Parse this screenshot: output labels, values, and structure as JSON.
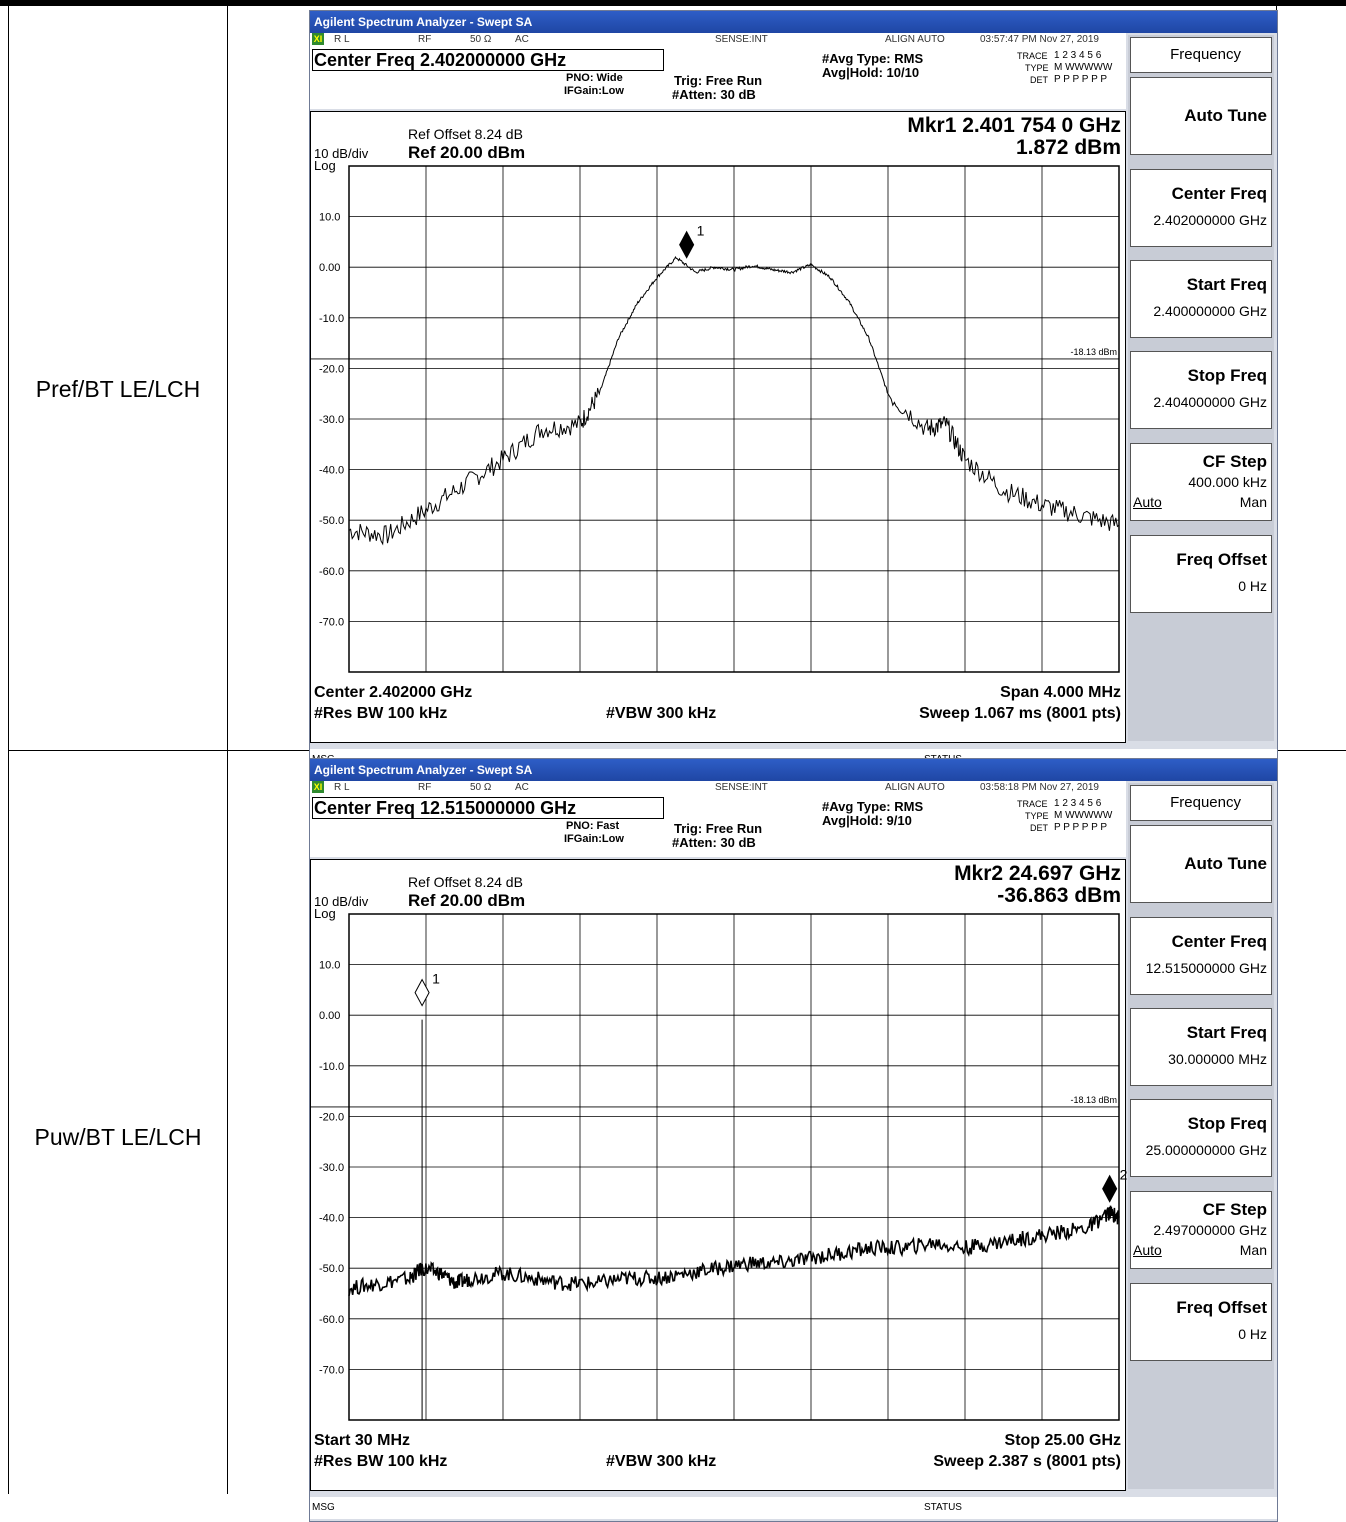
{
  "rows": [
    {
      "label": "Pref/BT LE/LCH",
      "window_title": "Agilent Spectrum Analyzer - Swept SA",
      "status": {
        "rl": "R L",
        "rf": "RF",
        "imp": "50 Ω",
        "coupling": "AC",
        "sense": "SENSE:INT",
        "align": "ALIGN AUTO",
        "timestamp": "03:57:47 PM Nov 27, 2019"
      },
      "center_freq_title": "Center Freq 2.402000000 GHz",
      "pno": "PNO: Wide",
      "ifgain": "IFGain:Low",
      "trig": "Trig: Free Run",
      "atten": "#Atten: 30 dB",
      "avg_type": "#Avg Type: RMS",
      "avg_hold": "Avg|Hold: 10/10",
      "trace": {
        "trace_label": "TRACE",
        "trace_val": "1 2 3 4 5 6",
        "type_label": "TYPE",
        "type_val": "M WWWWW",
        "det_label": "DET",
        "det_val": "P P P P P P"
      },
      "ref_offset": "Ref Offset 8.24 dB",
      "scale": "10 dB/div",
      "ref_level": "Ref 20.00 dBm",
      "log": "Log",
      "marker_readout": "Mkr1 2.401 754 0 GHz",
      "marker_value": "1.872 dBm",
      "threshold_label": "-18.13 dBm",
      "footer": {
        "left1": "Center 2.402000 GHz",
        "right1": "Span 4.000 MHz",
        "left2": "#Res BW 100 kHz",
        "mid2": "#VBW 300 kHz",
        "right2": "Sweep  1.067 ms (8001 pts)"
      },
      "msg": "MSG",
      "status_label": "STATUS",
      "softkeys": {
        "title": "Frequency",
        "auto_tune": "Auto Tune",
        "center_label": "Center Freq",
        "center_val": "2.402000000 GHz",
        "start_label": "Start Freq",
        "start_val": "2.400000000 GHz",
        "stop_label": "Stop Freq",
        "stop_val": "2.404000000 GHz",
        "cfstep_label": "CF Step",
        "cfstep_val": "400.000 kHz",
        "auto": "Auto",
        "man": "Man",
        "offset_label": "Freq Offset",
        "offset_val": "0 Hz"
      },
      "marker_number": "1",
      "chart_data": {
        "type": "line",
        "title": "",
        "xlabel": "Frequency",
        "ylabel": "dBm",
        "xlim": [
          2.4,
          2.404
        ],
        "ylim": [
          -80,
          20
        ],
        "y_ticks": [
          "10.0",
          "0.00",
          "-10.0",
          "-20.0",
          "-30.0",
          "-40.0",
          "-50.0",
          "-60.0",
          "-70.0"
        ],
        "threshold": -18.13,
        "markers": [
          {
            "name": "1",
            "x": 2.401754,
            "y": 1.872,
            "style": "filled"
          }
        ],
        "series": [
          {
            "x": [
              2.4,
              2.4002,
              2.4004,
              2.4006,
              2.4008,
              2.401,
              2.4012,
              2.4013,
              2.4014,
              2.4015,
              2.4016,
              2.4017,
              2.4018,
              2.4019,
              2.402,
              2.4021,
              2.4022,
              2.4023,
              2.4024,
              2.4025,
              2.4026,
              2.4027,
              2.4028,
              2.403,
              2.4031,
              2.4032,
              2.4034,
              2.4036,
              2.4038,
              2.404
            ],
            "y": [
              -52,
              -53,
              -48,
              -43,
              -38,
              -32,
              -31,
              -25,
              -14,
              -7,
              -2,
              1.9,
              -1,
              0,
              -0.5,
              0.3,
              -0.5,
              -1,
              0.5,
              -2,
              -7,
              -14,
              -25,
              -32,
              -31,
              -38,
              -44,
              -47,
              -49,
              -51
            ]
          }
        ]
      }
    },
    {
      "label": "Puw/BT LE/LCH",
      "window_title": "Agilent Spectrum Analyzer - Swept SA",
      "status": {
        "rl": "R L",
        "rf": "RF",
        "imp": "50 Ω",
        "coupling": "AC",
        "sense": "SENSE:INT",
        "align": "ALIGN AUTO",
        "timestamp": "03:58:18 PM Nov 27, 2019"
      },
      "center_freq_title": "Center Freq 12.515000000 GHz",
      "pno": "PNO: Fast",
      "ifgain": "IFGain:Low",
      "trig": "Trig: Free Run",
      "atten": "#Atten: 30 dB",
      "avg_type": "#Avg Type: RMS",
      "avg_hold": "Avg|Hold: 9/10",
      "trace": {
        "trace_label": "TRACE",
        "trace_val": "1 2 3 4 5 6",
        "type_label": "TYPE",
        "type_val": "M WWWWW",
        "det_label": "DET",
        "det_val": "P P P P P P"
      },
      "ref_offset": "Ref Offset 8.24 dB",
      "scale": "10 dB/div",
      "ref_level": "Ref 20.00 dBm",
      "log": "Log",
      "marker_readout": "Mkr2 24.697 GHz",
      "marker_value": "-36.863 dBm",
      "threshold_label": "-18.13 dBm",
      "footer": {
        "left1": "Start 30 MHz",
        "right1": "Stop 25.00 GHz",
        "left2": "#Res BW 100 kHz",
        "mid2": "#VBW 300 kHz",
        "right2": "Sweep  2.387 s (8001 pts)"
      },
      "msg": "MSG",
      "status_label": "STATUS",
      "softkeys": {
        "title": "Frequency",
        "auto_tune": "Auto Tune",
        "center_label": "Center Freq",
        "center_val": "12.515000000 GHz",
        "start_label": "Start Freq",
        "start_val": "30.000000 MHz",
        "stop_label": "Stop Freq",
        "stop_val": "25.000000000 GHz",
        "cfstep_label": "CF Step",
        "cfstep_val": "2.497000000 GHz",
        "auto": "Auto",
        "man": "Man",
        "offset_label": "Freq Offset",
        "offset_val": "0 Hz"
      },
      "marker_number": "1",
      "marker2_number": "2",
      "chart_data": {
        "type": "line",
        "title": "",
        "xlabel": "Frequency",
        "ylabel": "dBm",
        "xlim": [
          0.03,
          25.0
        ],
        "ylim": [
          -80,
          20
        ],
        "y_ticks": [
          "10.0",
          "0.00",
          "-10.0",
          "-20.0",
          "-30.0",
          "-40.0",
          "-50.0",
          "-60.0",
          "-70.0"
        ],
        "threshold": -18.13,
        "markers": [
          {
            "name": "1",
            "x": 2.4,
            "y": 1.9,
            "style": "hollow"
          },
          {
            "name": "2",
            "x": 24.697,
            "y": -36.863,
            "style": "filled"
          }
        ],
        "series": [
          {
            "x": [
              0.03,
              1,
              2,
              2.4,
              3,
              3.5,
              4,
              5,
              6,
              7,
              8,
              9,
              10,
              11,
              12,
              13,
              14,
              15,
              16,
              17,
              18,
              19,
              20,
              21,
              22,
              23,
              24,
              24.7,
              25
            ],
            "y": [
              -54,
              -53,
              -52,
              -50,
              -51,
              -53,
              -52,
              -51,
              -52,
              -53,
              -53,
              -52,
              -52,
              -51,
              -50,
              -49,
              -49,
              -48,
              -47,
              -46,
              -46,
              -45,
              -46,
              -45,
              -44,
              -43,
              -42,
              -39,
              -40
            ]
          }
        ]
      }
    }
  ]
}
